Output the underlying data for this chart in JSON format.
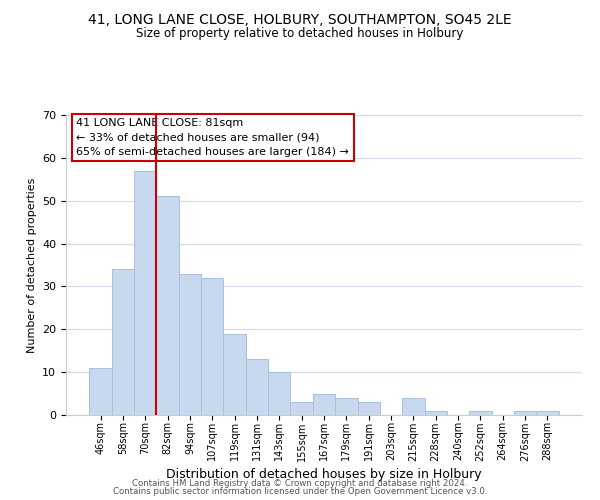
{
  "title": "41, LONG LANE CLOSE, HOLBURY, SOUTHAMPTON, SO45 2LE",
  "subtitle": "Size of property relative to detached houses in Holbury",
  "xlabel": "Distribution of detached houses by size in Holbury",
  "ylabel": "Number of detached properties",
  "bar_labels": [
    "46sqm",
    "58sqm",
    "70sqm",
    "82sqm",
    "94sqm",
    "107sqm",
    "119sqm",
    "131sqm",
    "143sqm",
    "155sqm",
    "167sqm",
    "179sqm",
    "191sqm",
    "203sqm",
    "215sqm",
    "228sqm",
    "240sqm",
    "252sqm",
    "264sqm",
    "276sqm",
    "288sqm"
  ],
  "bar_values": [
    11,
    34,
    57,
    51,
    33,
    32,
    19,
    13,
    10,
    3,
    5,
    4,
    3,
    0,
    4,
    1,
    0,
    1,
    0,
    1,
    1
  ],
  "bar_color": "#c8d9ef",
  "bar_edge_color": "#a8c0de",
  "vline_color": "#cc0000",
  "ylim": [
    0,
    70
  ],
  "yticks": [
    0,
    10,
    20,
    30,
    40,
    50,
    60,
    70
  ],
  "annotation_title": "41 LONG LANE CLOSE: 81sqm",
  "annotation_line1": "← 33% of detached houses are smaller (94)",
  "annotation_line2": "65% of semi-detached houses are larger (184) →",
  "annotation_box_color": "#ffffff",
  "annotation_box_edge": "#cc0000",
  "footer1": "Contains HM Land Registry data © Crown copyright and database right 2024.",
  "footer2": "Contains public sector information licensed under the Open Government Licence v3.0.",
  "background_color": "#ffffff",
  "grid_color": "#d0dae8",
  "title_fontsize": 10,
  "subtitle_fontsize": 8.5,
  "xlabel_fontsize": 9,
  "ylabel_fontsize": 8
}
